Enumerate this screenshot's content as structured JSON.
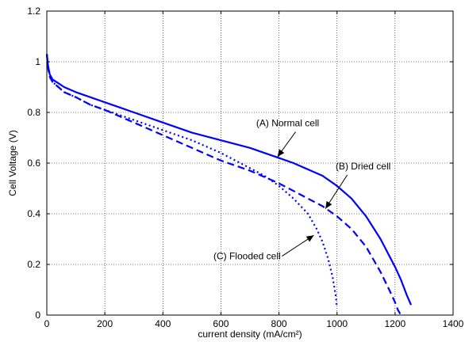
{
  "chart_data": {
    "type": "line",
    "title": "",
    "xlabel": "current density (mA/cm²)",
    "ylabel": "Cell Voltage (V)",
    "xlim": [
      0,
      1400
    ],
    "ylim": [
      0,
      1.2
    ],
    "xticks": [
      0,
      200,
      400,
      600,
      800,
      1000,
      1200,
      1400
    ],
    "yticks": [
      0,
      0.2,
      0.4,
      0.6,
      0.8,
      1,
      1.2
    ],
    "xtick_labels": [
      "0",
      "200",
      "400",
      "600",
      "800",
      "1000",
      "1200",
      "1400"
    ],
    "ytick_labels": [
      "0",
      "0.2",
      "0.4",
      "0.6",
      "0.8",
      "1",
      "1.2"
    ],
    "grid": true,
    "series": [
      {
        "name": "(A) Normal cell",
        "color": "#0000ff",
        "style": "solid",
        "x": [
          0,
          5,
          10,
          20,
          40,
          60,
          100,
          150,
          200,
          250,
          300,
          400,
          500,
          600,
          700,
          800,
          850,
          900,
          950,
          1000,
          1050,
          1100,
          1150,
          1200,
          1220,
          1240,
          1255
        ],
        "y": [
          1.03,
          0.98,
          0.95,
          0.93,
          0.915,
          0.9,
          0.88,
          0.86,
          0.84,
          0.82,
          0.8,
          0.76,
          0.72,
          0.69,
          0.66,
          0.62,
          0.6,
          0.575,
          0.55,
          0.51,
          0.46,
          0.39,
          0.3,
          0.19,
          0.14,
          0.08,
          0.04
        ]
      },
      {
        "name": "(B) Dried cell",
        "color": "#0000ff",
        "style": "dashed",
        "x": [
          0,
          5,
          10,
          20,
          40,
          60,
          100,
          150,
          200,
          250,
          300,
          400,
          500,
          600,
          700,
          800,
          850,
          900,
          950,
          1000,
          1050,
          1100,
          1150,
          1180,
          1200,
          1210,
          1220
        ],
        "y": [
          1.03,
          0.97,
          0.94,
          0.92,
          0.9,
          0.88,
          0.86,
          0.83,
          0.81,
          0.785,
          0.76,
          0.71,
          0.66,
          0.61,
          0.57,
          0.52,
          0.49,
          0.46,
          0.43,
          0.39,
          0.34,
          0.27,
          0.17,
          0.1,
          0.05,
          0.02,
          0.0
        ]
      },
      {
        "name": "(C) Flooded cell",
        "color": "#0000ff",
        "style": "dotted",
        "x": [
          0,
          5,
          10,
          20,
          40,
          60,
          100,
          150,
          200,
          250,
          300,
          400,
          500,
          600,
          700,
          750,
          800,
          850,
          900,
          930,
          950,
          970,
          985,
          995,
          1000
        ],
        "y": [
          1.03,
          0.97,
          0.95,
          0.92,
          0.9,
          0.88,
          0.86,
          0.83,
          0.81,
          0.79,
          0.77,
          0.73,
          0.69,
          0.64,
          0.58,
          0.55,
          0.51,
          0.46,
          0.4,
          0.34,
          0.29,
          0.22,
          0.15,
          0.08,
          0.03
        ]
      }
    ],
    "annotations": [
      {
        "text": "(A) Normal cell",
        "label_at": [
          830,
          0.745
        ],
        "arrow_to": [
          795,
          0.625
        ]
      },
      {
        "text": "(B) Dried cell",
        "label_at": [
          1090,
          0.575
        ],
        "arrow_to": [
          960,
          0.42
        ]
      },
      {
        "text": "(C) Flooded cell",
        "label_at": [
          690,
          0.22
        ],
        "arrow_to": [
          920,
          0.315
        ]
      }
    ]
  }
}
